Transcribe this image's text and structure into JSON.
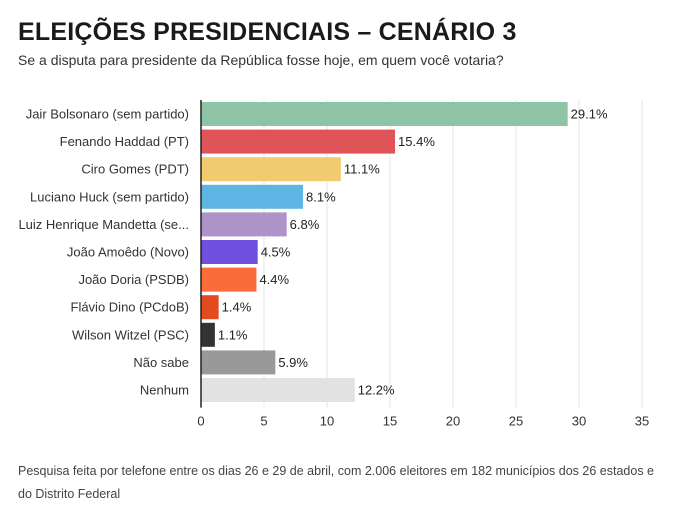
{
  "header": {
    "title": "ELEIÇÕES PRESIDENCIAIS – CENÁRIO 3",
    "subtitle": "Se a disputa para presidente da República fosse hoje, em quem você votaria?"
  },
  "footnote": "Pesquisa feita por telefone entre os dias 26 e 29 de abril, com 2.006 eleitores em 182 municípios dos 26 estados e do Distrito Federal",
  "chart_data": {
    "type": "bar",
    "orientation": "horizontal",
    "categories": [
      "Jair Bolsonaro (sem partido)",
      "Fenando Haddad (PT)",
      "Ciro Gomes (PDT)",
      "Luciano Huck (sem partido)",
      "Luiz Henrique Mandetta (se...",
      "João Amoêdo (Novo)",
      "João Doria (PSDB)",
      "Flávio Dino (PCdoB)",
      "Wilson Witzel (PSC)",
      "Não sabe",
      "Nenhum"
    ],
    "values": [
      29.1,
      15.4,
      11.1,
      8.1,
      6.8,
      4.5,
      4.4,
      1.4,
      1.1,
      5.9,
      12.2
    ],
    "value_labels": [
      "29.1%",
      "15.4%",
      "11.1%",
      "8.1%",
      "6.8%",
      "4.5%",
      "4.4%",
      "1.4%",
      "1.1%",
      "5.9%",
      "12.2%"
    ],
    "colors": [
      "#8ec3a5",
      "#de5459",
      "#f0cc6e",
      "#5db5e3",
      "#ad93c8",
      "#7050de",
      "#fb6c3b",
      "#e24a20",
      "#333333",
      "#999999",
      "#e2e2e2"
    ],
    "xlim": [
      0,
      35
    ],
    "xticks": [
      0,
      5,
      10,
      15,
      20,
      25,
      30,
      35
    ],
    "grid": true,
    "legend": "none"
  }
}
